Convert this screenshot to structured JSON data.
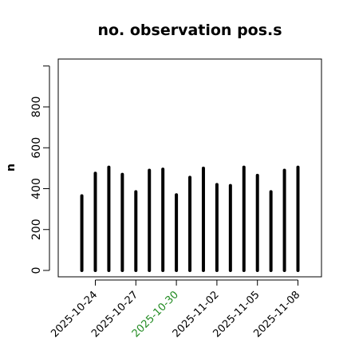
{
  "chart_data": {
    "type": "bar",
    "title": "no. observation pos.s",
    "xlabel": "",
    "ylabel": "n",
    "ylim": [
      0,
      1000
    ],
    "yticks": [
      0,
      200,
      400,
      600,
      800
    ],
    "grid": false,
    "x": [
      "2025-10-23",
      "2025-10-24",
      "2025-10-25",
      "2025-10-26",
      "2025-10-27",
      "2025-10-28",
      "2025-10-29",
      "2025-10-30",
      "2025-10-31",
      "2025-11-01",
      "2025-11-02",
      "2025-11-03",
      "2025-11-04",
      "2025-11-05",
      "2025-11-06",
      "2025-11-07",
      "2025-11-08"
    ],
    "values": [
      365,
      475,
      505,
      470,
      385,
      490,
      495,
      370,
      455,
      500,
      420,
      415,
      505,
      465,
      385,
      490,
      505
    ],
    "xtick_labels": [
      {
        "label": "2025-10-24",
        "date": "2025-10-24",
        "color": "#000000"
      },
      {
        "label": "2025-10-27",
        "date": "2025-10-27",
        "color": "#000000"
      },
      {
        "label": "2025-10-30",
        "date": "2025-10-30",
        "color": "#228B22"
      },
      {
        "label": "2025-11-02",
        "date": "2025-11-02",
        "color": "#000000"
      },
      {
        "label": "2025-11-05",
        "date": "2025-11-05",
        "color": "#000000"
      },
      {
        "label": "2025-11-08",
        "date": "2025-11-08",
        "color": "#000000"
      }
    ],
    "bar_color": "#000000"
  }
}
